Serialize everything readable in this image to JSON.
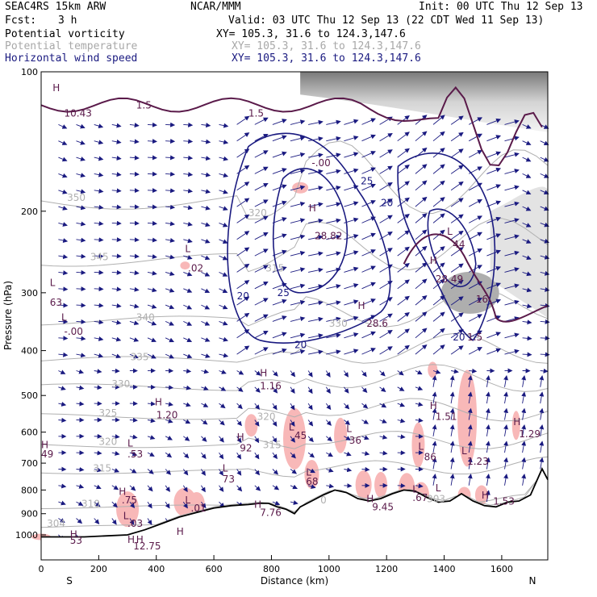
{
  "header": {
    "model": "SEAC4RS 15km ARW",
    "center": "NCAR/MMM",
    "init": "Init: 00 UTC Thu 12 Sep 13",
    "fcst_label": "Fcst:",
    "fcst_value": "3 h",
    "valid": "Valid: 03 UTC Thu 12 Sep 13 (22 CDT Wed 11 Sep 13)"
  },
  "fields": [
    {
      "name": "Potential vorticity",
      "xy": "XY= 105.3, 31.6 to 124.3,147.6",
      "color": "#000000"
    },
    {
      "name": "Potential temperature",
      "xy": "XY= 105.3, 31.6 to 124.3,147.6",
      "color": "#a8a8a8"
    },
    {
      "name": "Horizontal wind speed",
      "xy": "XY= 105.3, 31.6 to 124.3,147.6",
      "color": "#1a1a80"
    }
  ],
  "chart_data": {
    "type": "cross-section",
    "xlabel": "Distance (km)",
    "ylabel": "Pressure (hPa)",
    "x_ticks": [
      "0",
      "200",
      "400",
      "600",
      "800",
      "1000",
      "1200",
      "1400",
      "1600"
    ],
    "y_ticks": [
      "100",
      "200",
      "300",
      "400",
      "500",
      "600",
      "700",
      "800",
      "900",
      "1000"
    ],
    "xlim": [
      0,
      1760
    ],
    "ylim": [
      1050,
      100
    ],
    "y_scale": "log",
    "endpoint_labels": {
      "left": "S",
      "right": "N"
    },
    "colors": {
      "pv_contour": "#5a1a4a",
      "theta_contour": "#b0b0b0",
      "wind_contour": "#1a1a80",
      "pv_fill": "#f8b8b8",
      "terrain": "#000000"
    },
    "theta_levels": [
      "350",
      "345",
      "340",
      "340",
      "335",
      "330",
      "325",
      "320",
      "315",
      "310",
      "305",
      "300",
      "350",
      "335",
      "325",
      "320",
      "315",
      "310",
      "305",
      "300",
      "300",
      "305"
    ],
    "theta_labels": [
      {
        "t": "350",
        "x": 90,
        "p": 190
      },
      {
        "t": "345",
        "x": 170,
        "p": 255
      },
      {
        "t": "340",
        "x": 330,
        "p": 345
      },
      {
        "t": "335",
        "x": 310,
        "p": 420
      },
      {
        "t": "330",
        "x": 245,
        "p": 480
      },
      {
        "t": "325",
        "x": 200,
        "p": 555
      },
      {
        "t": "320",
        "x": 200,
        "p": 640
      },
      {
        "t": "315",
        "x": 180,
        "p": 730
      },
      {
        "t": "310",
        "x": 140,
        "p": 870
      },
      {
        "t": "304",
        "x": 20,
        "p": 960
      },
      {
        "t": "320",
        "x": 750,
        "p": 565
      },
      {
        "t": "315",
        "x": 770,
        "p": 650
      },
      {
        "t": "315",
        "x": 780,
        "p": 270
      },
      {
        "t": "320",
        "x": 720,
        "p": 205
      },
      {
        "t": "330",
        "x": 1000,
        "p": 355
      },
      {
        "t": "303",
        "x": 1340,
        "p": 850
      },
      {
        "t": "0",
        "x": 970,
        "p": 855
      }
    ],
    "pv_extrema": [
      {
        "t": "H",
        "x": 40,
        "p": 110
      },
      {
        "t": "10.43",
        "x": 80,
        "p": 125
      },
      {
        "t": "1.5",
        "x": 330,
        "p": 120
      },
      {
        "t": "1.5",
        "x": 720,
        "p": 125
      },
      {
        "t": "L",
        "x": 500,
        "p": 245
      },
      {
        "t": ".02",
        "x": 510,
        "p": 270
      },
      {
        "t": "L",
        "x": 30,
        "p": 290
      },
      {
        "t": "63",
        "x": 30,
        "p": 320
      },
      {
        "t": "L",
        "x": 70,
        "p": 345
      },
      {
        "t": "-.00",
        "x": 80,
        "p": 370
      },
      {
        "t": "H",
        "x": 760,
        "p": 455
      },
      {
        "t": "1.16",
        "x": 760,
        "p": 485
      },
      {
        "t": "H",
        "x": 395,
        "p": 525
      },
      {
        "t": "1.20",
        "x": 400,
        "p": 560
      },
      {
        "t": "H",
        "x": 680,
        "p": 625
      },
      {
        "t": "92",
        "x": 690,
        "p": 660
      },
      {
        "t": "L",
        "x": 300,
        "p": 645
      },
      {
        "t": ".53",
        "x": 300,
        "p": 680
      },
      {
        "t": "H",
        "x": 0,
        "p": 650
      },
      {
        "t": "49",
        "x": 0,
        "p": 680
      },
      {
        "t": "L",
        "x": 630,
        "p": 730
      },
      {
        "t": "73",
        "x": 630,
        "p": 770
      },
      {
        "t": "L",
        "x": 860,
        "p": 595
      },
      {
        "t": "45",
        "x": 880,
        "p": 620
      },
      {
        "t": "L",
        "x": 1060,
        "p": 600
      },
      {
        "t": "36",
        "x": 1070,
        "p": 635
      },
      {
        "t": "L",
        "x": 1310,
        "p": 655
      },
      {
        "t": "86",
        "x": 1330,
        "p": 690
      },
      {
        "t": "H",
        "x": 1350,
        "p": 535
      },
      {
        "t": "1.51",
        "x": 1370,
        "p": 565
      },
      {
        "t": "L",
        "x": 1460,
        "p": 670
      },
      {
        "t": "1.23",
        "x": 1480,
        "p": 705
      },
      {
        "t": "H",
        "x": 1640,
        "p": 580
      },
      {
        "t": "1.29",
        "x": 1660,
        "p": 615
      },
      {
        "t": "L",
        "x": 920,
        "p": 745
      },
      {
        "t": "68",
        "x": 920,
        "p": 780
      },
      {
        "t": "H",
        "x": 270,
        "p": 820
      },
      {
        "t": ".75",
        "x": 280,
        "p": 855
      },
      {
        "t": "L",
        "x": 500,
        "p": 855
      },
      {
        "t": ".01",
        "x": 520,
        "p": 890
      },
      {
        "t": "L",
        "x": 285,
        "p": 925
      },
      {
        "t": ".03",
        "x": 300,
        "p": 960
      },
      {
        "t": "H",
        "x": 740,
        "p": 875
      },
      {
        "t": "7.76",
        "x": 760,
        "p": 910
      },
      {
        "t": "H",
        "x": 1130,
        "p": 850
      },
      {
        "t": "9.45",
        "x": 1150,
        "p": 885
      },
      {
        "t": "L",
        "x": 1290,
        "p": 810
      },
      {
        "t": ".67",
        "x": 1290,
        "p": 845
      },
      {
        "t": "L",
        "x": 1370,
        "p": 805
      },
      {
        "t": "H",
        "x": 1530,
        "p": 835
      },
      {
        "t": "1.53",
        "x": 1570,
        "p": 860
      },
      {
        "t": "H",
        "x": 100,
        "p": 1015
      },
      {
        "t": "53",
        "x": 100,
        "p": 1045
      },
      {
        "t": "H",
        "x": 300,
        "p": 1040
      },
      {
        "t": "H",
        "x": 330,
        "p": 1040
      },
      {
        "t": "12.75",
        "x": 320,
        "p": 1075
      },
      {
        "t": "H",
        "x": 470,
        "p": 1000
      },
      {
        "t": "-.00",
        "x": 940,
        "p": 160
      },
      {
        "t": "H",
        "x": 930,
        "p": 200
      },
      {
        "t": "28.82",
        "x": 950,
        "p": 230
      },
      {
        "t": "H",
        "x": 1100,
        "p": 325
      },
      {
        "t": "28.6",
        "x": 1130,
        "p": 355
      },
      {
        "t": "L",
        "x": 1410,
        "p": 225
      },
      {
        "t": "44",
        "x": 1430,
        "p": 240
      },
      {
        "t": "H",
        "x": 1350,
        "p": 260
      },
      {
        "t": "28.49",
        "x": 1370,
        "p": 285
      },
      {
        "t": "16",
        "x": 1510,
        "p": 315
      },
      {
        "t": "1.5",
        "x": 1480,
        "p": 380
      }
    ],
    "wind_labels": [
      {
        "t": "20",
        "x": 680,
        "p": 310
      },
      {
        "t": "25",
        "x": 820,
        "p": 305
      },
      {
        "t": "20",
        "x": 880,
        "p": 395
      },
      {
        "t": "25",
        "x": 1110,
        "p": 175
      },
      {
        "t": "20",
        "x": 1180,
        "p": 195
      },
      {
        "t": "20",
        "x": 1430,
        "p": 380
      }
    ],
    "pv_filled_regions_count": 18,
    "wind_vectors": "grid of horizontal-wind arrows"
  }
}
